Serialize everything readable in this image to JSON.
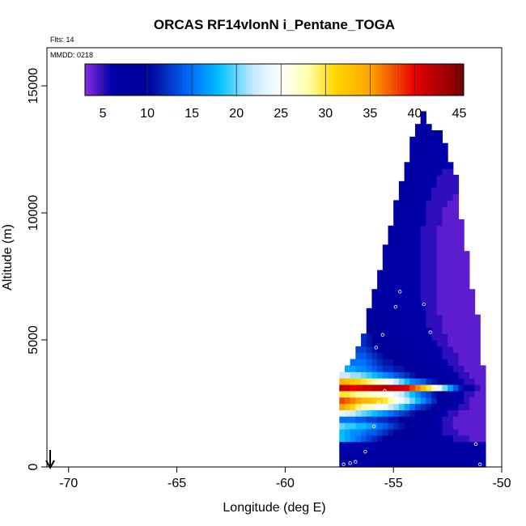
{
  "chart_data": {
    "type": "heatmap",
    "title": "ORCAS RF14vlonN i_Pentane_TOGA",
    "flights_label": "Flts: 14",
    "date_label": "MMDD: 0218",
    "xlabel": "Longitude (deg E)",
    "ylabel": "Altitude (m)",
    "xlim": [
      -71,
      -50
    ],
    "ylim": [
      0,
      16500
    ],
    "x_ticks": [
      -70,
      -65,
      -60,
      -55,
      -50
    ],
    "y_ticks": [
      0,
      5000,
      10000,
      15000
    ],
    "grid": false,
    "colorbar": {
      "range": [
        3,
        45.5
      ],
      "ticks": [
        5,
        10,
        15,
        20,
        25,
        30,
        35,
        40,
        45
      ],
      "location": "top inside plot"
    },
    "cells": {
      "lon_step": 0.25,
      "alt_step": 250,
      "columns": [
        {
          "lon": -57.5,
          "bottom": 0,
          "values": [
            6,
            8,
            7,
            6,
            18,
            18,
            20,
            15,
            24,
            35,
            38,
            30,
            42,
            34,
            22
          ]
        },
        {
          "lon": -57.25,
          "bottom": 0,
          "values": [
            6,
            8,
            7,
            6,
            17,
            17,
            19,
            15,
            23,
            33,
            37,
            30,
            41,
            33,
            22,
            17
          ]
        },
        {
          "lon": -57.0,
          "bottom": 0,
          "values": [
            6,
            8,
            7,
            6,
            16,
            16,
            19,
            15,
            22,
            31,
            36,
            29,
            40,
            32,
            21,
            17,
            15
          ]
        },
        {
          "lon": -56.75,
          "bottom": 0,
          "values": [
            6,
            8,
            7,
            6,
            15,
            16,
            18,
            14,
            21,
            29,
            35,
            28,
            40,
            31,
            21,
            16,
            15,
            14,
            13
          ]
        },
        {
          "lon": -56.5,
          "bottom": 0,
          "values": [
            6,
            8,
            7,
            6,
            14,
            15,
            18,
            14,
            20,
            28,
            34,
            28,
            41,
            30,
            20,
            16,
            15,
            14,
            13,
            12,
            12
          ]
        },
        {
          "lon": -56.25,
          "bottom": 0,
          "values": [
            6,
            8,
            7,
            7,
            13,
            14,
            17,
            13,
            19,
            27,
            33,
            27,
            41,
            29,
            19,
            15,
            14,
            13,
            12,
            11,
            11,
            10,
            10,
            9,
            9
          ]
        },
        {
          "lon": -56.0,
          "bottom": 0,
          "values": [
            6,
            8,
            7,
            7,
            12,
            14,
            16,
            13,
            18,
            26,
            32,
            27,
            42,
            28,
            18,
            14,
            13,
            12,
            11,
            10,
            10,
            10,
            9,
            9,
            9,
            8,
            8,
            8
          ]
        },
        {
          "lon": -55.75,
          "bottom": 0,
          "values": [
            7,
            8,
            7,
            7,
            11,
            13,
            15,
            12,
            17,
            25,
            31,
            26,
            42,
            27,
            17,
            13,
            12,
            11,
            10,
            9,
            9,
            9,
            8,
            8,
            8,
            8,
            7,
            7,
            7,
            7,
            7
          ]
        },
        {
          "lon": -55.5,
          "bottom": 0,
          "values": [
            7,
            8,
            7,
            7,
            10,
            12,
            14,
            12,
            16,
            24,
            30,
            26,
            43,
            26,
            16,
            12,
            11,
            10,
            9,
            9,
            8,
            8,
            8,
            8,
            7,
            7,
            7,
            7,
            7,
            7,
            7,
            7,
            7,
            7,
            7
          ]
        },
        {
          "lon": -55.25,
          "bottom": 0,
          "values": [
            7,
            8,
            7,
            7,
            10,
            11,
            13,
            11,
            15,
            22,
            28,
            25,
            42,
            24,
            15,
            12,
            11,
            9,
            9,
            8,
            8,
            8,
            7,
            7,
            7,
            7,
            7,
            7,
            7,
            7,
            7,
            7,
            7,
            7,
            7,
            7,
            7,
            7
          ]
        },
        {
          "lon": -55.0,
          "bottom": 0,
          "values": [
            7,
            8,
            7,
            7,
            9,
            10,
            12,
            11,
            14,
            21,
            26,
            24,
            42,
            22,
            14,
            11,
            10,
            9,
            8,
            8,
            8,
            7,
            7,
            7,
            7,
            7,
            7,
            6,
            6,
            6,
            6,
            6,
            6,
            6,
            6,
            7,
            7,
            7,
            7,
            7,
            7,
            7
          ]
        },
        {
          "lon": -54.75,
          "bottom": 0,
          "values": [
            7,
            8,
            7,
            7,
            9,
            10,
            11,
            10,
            13,
            19,
            24,
            22,
            41,
            20,
            13,
            11,
            10,
            9,
            8,
            8,
            7,
            7,
            7,
            7,
            6,
            6,
            6,
            6,
            6,
            6,
            6,
            6,
            6,
            6,
            6,
            6,
            6,
            6,
            7,
            7,
            7,
            7,
            7,
            7,
            7
          ]
        },
        {
          "lon": -54.5,
          "bottom": 0,
          "values": [
            7,
            8,
            7,
            7,
            9,
            9,
            10,
            10,
            12,
            17,
            22,
            20,
            40,
            18,
            12,
            10,
            9,
            8,
            8,
            7,
            7,
            7,
            7,
            6,
            6,
            6,
            6,
            6,
            6,
            6,
            6,
            6,
            6,
            6,
            6,
            6,
            6,
            6,
            6,
            6,
            7,
            7,
            7,
            7,
            7,
            7,
            7,
            7
          ]
        },
        {
          "lon": -54.25,
          "bottom": 0,
          "values": [
            7,
            8,
            7,
            7,
            8,
            9,
            9,
            9,
            11,
            15,
            20,
            18,
            38,
            16,
            11,
            9,
            9,
            8,
            7,
            7,
            7,
            6,
            6,
            6,
            6,
            6,
            6,
            6,
            6,
            6,
            6,
            6,
            6,
            6,
            6,
            6,
            6,
            6,
            6,
            6,
            6,
            6,
            7,
            7,
            7,
            7,
            7,
            7,
            7,
            7,
            7,
            7
          ]
        },
        {
          "lon": -54.0,
          "bottom": 0,
          "values": [
            7,
            8,
            7,
            7,
            8,
            8,
            9,
            9,
            10,
            13,
            18,
            16,
            36,
            15,
            10,
            9,
            8,
            8,
            7,
            7,
            6,
            6,
            6,
            6,
            6,
            6,
            6,
            6,
            6,
            6,
            6,
            6,
            6,
            6,
            6,
            6,
            6,
            6,
            6,
            6,
            6,
            6,
            6,
            6,
            6,
            6,
            7,
            7,
            7,
            7,
            7,
            7,
            7,
            7
          ]
        },
        {
          "lon": -53.75,
          "bottom": 0,
          "values": [
            7,
            8,
            7,
            7,
            8,
            8,
            8,
            8,
            9,
            12,
            16,
            14,
            33,
            14,
            9,
            8,
            8,
            7,
            7,
            6,
            6,
            6,
            6,
            6,
            6,
            6,
            5,
            5,
            5,
            5,
            5,
            5,
            5,
            5,
            5,
            5,
            5,
            5,
            6,
            6,
            6,
            6,
            6,
            6,
            6,
            6,
            6,
            6,
            7,
            7,
            7,
            7,
            7,
            7,
            7,
            7
          ]
        },
        {
          "lon": -53.5,
          "bottom": 0,
          "values": [
            7,
            8,
            7,
            7,
            7,
            7,
            8,
            8,
            8,
            11,
            14,
            13,
            30,
            12,
            8,
            8,
            7,
            7,
            6,
            6,
            6,
            6,
            5,
            5,
            5,
            5,
            5,
            5,
            5,
            5,
            5,
            5,
            5,
            5,
            5,
            5,
            5,
            5,
            5,
            5,
            5,
            5,
            6,
            6,
            6,
            6,
            6,
            6,
            6,
            6,
            6,
            7,
            7,
            7
          ]
        },
        {
          "lon": -53.25,
          "bottom": 0,
          "values": [
            7,
            8,
            7,
            7,
            7,
            7,
            7,
            7,
            8,
            10,
            12,
            11,
            27,
            11,
            8,
            7,
            7,
            6,
            6,
            6,
            5,
            5,
            5,
            5,
            5,
            5,
            5,
            5,
            5,
            5,
            5,
            5,
            5,
            5,
            5,
            5,
            5,
            5,
            5,
            5,
            5,
            5,
            5,
            5,
            6,
            6,
            6,
            6,
            6,
            6,
            6,
            7,
            7
          ]
        },
        {
          "lon": -53.0,
          "bottom": 0,
          "values": [
            7,
            8,
            7,
            7,
            7,
            6,
            6,
            6,
            7,
            9,
            10,
            10,
            24,
            10,
            7,
            7,
            6,
            6,
            6,
            5,
            5,
            5,
            5,
            5,
            4,
            4,
            4,
            4,
            4,
            4,
            4,
            4,
            4,
            4,
            4,
            4,
            4,
            4,
            5,
            5,
            5,
            5,
            5,
            5,
            5,
            5,
            6,
            6,
            6,
            6,
            6,
            7,
            7
          ]
        },
        {
          "lon": -52.75,
          "bottom": 0,
          "values": [
            7,
            8,
            7,
            7,
            6,
            5,
            5,
            5,
            6,
            8,
            9,
            9,
            20,
            9,
            7,
            6,
            6,
            5,
            5,
            5,
            5,
            4,
            4,
            4,
            4,
            4,
            4,
            4,
            4,
            4,
            4,
            4,
            4,
            4,
            4,
            4,
            4,
            4,
            4,
            4,
            4,
            5,
            5,
            5,
            5,
            5,
            5,
            6,
            6,
            6,
            6
          ]
        },
        {
          "lon": -52.5,
          "bottom": 0,
          "values": [
            7,
            8,
            7,
            7,
            6,
            5,
            5,
            5,
            5,
            7,
            8,
            8,
            17,
            8,
            6,
            6,
            5,
            5,
            5,
            4,
            4,
            4,
            4,
            4,
            4,
            4,
            4,
            4,
            4,
            4,
            4,
            4,
            4,
            4,
            4,
            4,
            4,
            4,
            4,
            4,
            4,
            4,
            5,
            5,
            5,
            5,
            5,
            6
          ]
        },
        {
          "lon": -52.25,
          "bottom": 0,
          "values": [
            7,
            8,
            7,
            7,
            5,
            5,
            4,
            4,
            5,
            6,
            7,
            7,
            14,
            7,
            6,
            5,
            5,
            5,
            4,
            4,
            4,
            4,
            4,
            4,
            4,
            4,
            4,
            4,
            4,
            4,
            4,
            4,
            4,
            4,
            4,
            4,
            4,
            4,
            4,
            4,
            4,
            4,
            4,
            5,
            5,
            5
          ]
        },
        {
          "lon": -52.0,
          "bottom": 0,
          "values": [
            7,
            8,
            7,
            7,
            5,
            4,
            4,
            4,
            4,
            5,
            6,
            6,
            11,
            6,
            5,
            5,
            4,
            4,
            4,
            4,
            4,
            4,
            4,
            4,
            4,
            4,
            4,
            4,
            4,
            4,
            4,
            4,
            4,
            4,
            4,
            4,
            4,
            4,
            4
          ]
        },
        {
          "lon": -51.75,
          "bottom": 0,
          "values": [
            7,
            8,
            7,
            7,
            5,
            4,
            4,
            4,
            4,
            5,
            5,
            5,
            8,
            5,
            5,
            4,
            4,
            4,
            4,
            4,
            4,
            4,
            4,
            4,
            4,
            4,
            4,
            4,
            4,
            4,
            4,
            4,
            4,
            4
          ]
        },
        {
          "lon": -51.5,
          "bottom": 0,
          "values": [
            7,
            8,
            7,
            7,
            4,
            4,
            4,
            4,
            4,
            4,
            4,
            5,
            6,
            5,
            4,
            4,
            4,
            4,
            4,
            4,
            4,
            4,
            4,
            4,
            4,
            4,
            4,
            4
          ]
        },
        {
          "lon": -51.25,
          "bottom": 0,
          "values": [
            7,
            8,
            7,
            7,
            4,
            4,
            4,
            4,
            4,
            4,
            4,
            4,
            5,
            4,
            4,
            4,
            4,
            4,
            4,
            4,
            4,
            4,
            4,
            4
          ]
        },
        {
          "lon": -51.0,
          "bottom": 0,
          "values": [
            6,
            7,
            6,
            6,
            4,
            4,
            4,
            4,
            4,
            4,
            4,
            4,
            4,
            4,
            4,
            4
          ]
        }
      ]
    },
    "samples": [
      {
        "lon": -57.3,
        "alt": 100
      },
      {
        "lon": -57.0,
        "alt": 150
      },
      {
        "lon": -56.75,
        "alt": 200
      },
      {
        "lon": -56.3,
        "alt": 600
      },
      {
        "lon": -55.9,
        "alt": 1600
      },
      {
        "lon": -55.7,
        "alt": 2550
      },
      {
        "lon": -55.4,
        "alt": 3000
      },
      {
        "lon": -55.8,
        "alt": 4700
      },
      {
        "lon": -55.5,
        "alt": 5200
      },
      {
        "lon": -54.9,
        "alt": 6300
      },
      {
        "lon": -54.7,
        "alt": 6900
      },
      {
        "lon": -53.6,
        "alt": 6400
      },
      {
        "lon": -53.3,
        "alt": 5300
      },
      {
        "lon": -51.2,
        "alt": 900
      },
      {
        "lon": -51.0,
        "alt": 100
      }
    ],
    "start_marker_lon": -70.85
  }
}
